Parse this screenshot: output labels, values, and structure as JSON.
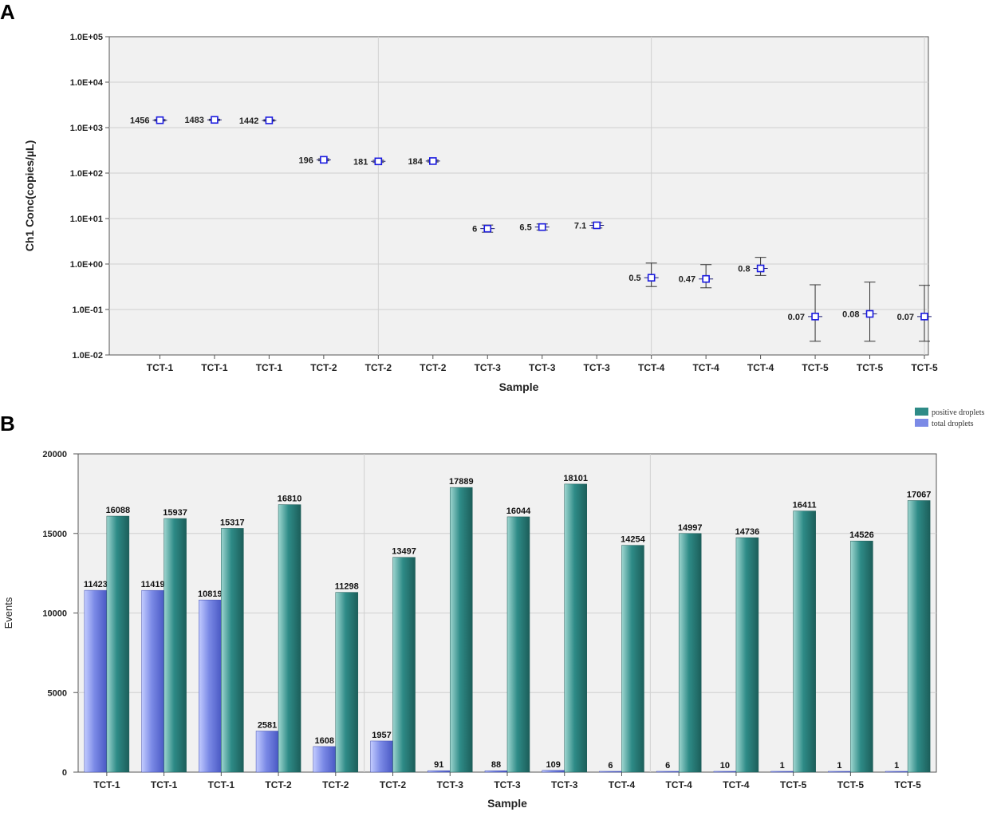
{
  "chart_data": [
    {
      "id": "A",
      "type": "scatter",
      "panel_label": "A",
      "xlabel": "Sample",
      "ylabel": "Ch1 Conc(copies/µL)",
      "yscale": "log",
      "ylim": [
        0.01,
        100000
      ],
      "ytick_labels": [
        "1.0E-02",
        "1.0E-01",
        "1.0E+00",
        "1.0E+01",
        "1.0E+02",
        "1.0E+03",
        "1.0E+04",
        "1.0E+05"
      ],
      "categories": [
        "TCT-1",
        "TCT-1",
        "TCT-1",
        "TCT-2",
        "TCT-2",
        "TCT-2",
        "TCT-3",
        "TCT-3",
        "TCT-3",
        "TCT-4",
        "TCT-4",
        "TCT-4",
        "TCT-5",
        "TCT-5",
        "TCT-5"
      ],
      "values": [
        1456,
        1483,
        1442,
        196,
        181,
        184,
        6,
        6.5,
        7.1,
        0.5,
        0.47,
        0.8,
        0.07,
        0.08,
        0.07
      ],
      "value_labels": [
        "1456",
        "1483",
        "1442",
        "196",
        "181",
        "184",
        "6",
        "6.5",
        "7.1",
        "0.5",
        "0.47",
        "0.8",
        "0.07",
        "0.08",
        "0.07"
      ],
      "error_low": [
        1400,
        1430,
        1390,
        186,
        171,
        175,
        5.0,
        5.6,
        6.2,
        0.32,
        0.3,
        0.56,
        0.02,
        0.02,
        0.02
      ],
      "error_high": [
        1510,
        1535,
        1495,
        207,
        192,
        194,
        7.2,
        7.6,
        8.1,
        1.05,
        0.97,
        1.4,
        0.35,
        0.4,
        0.34
      ],
      "grid": true,
      "marker_color": "#1a1adf"
    },
    {
      "id": "B",
      "type": "bar",
      "panel_label": "B",
      "xlabel": "Sample",
      "ylabel": "Events",
      "ylim": [
        0,
        20000
      ],
      "yticks": [
        0,
        5000,
        10000,
        15000,
        20000
      ],
      "categories": [
        "TCT-1",
        "TCT-1",
        "TCT-1",
        "TCT-2",
        "TCT-2",
        "TCT-2",
        "TCT-3",
        "TCT-3",
        "TCT-3",
        "TCT-4",
        "TCT-4",
        "TCT-4",
        "TCT-5",
        "TCT-5",
        "TCT-5"
      ],
      "legend_position": "top-right",
      "grid": true,
      "series": [
        {
          "name": "total droplets",
          "color": "#7b8ae6",
          "values": [
            11423,
            11419,
            10819,
            2581,
            1608,
            1957,
            91,
            88,
            109,
            6,
            6,
            10,
            1,
            1,
            1
          ]
        },
        {
          "name": "positive droplets",
          "color": "#2e8b87",
          "values": [
            16088,
            15937,
            15317,
            16810,
            11298,
            13497,
            17889,
            16044,
            18101,
            14254,
            14997,
            14736,
            16411,
            14526,
            17067
          ]
        }
      ],
      "legend_order": [
        "positive droplets",
        "total droplets"
      ]
    }
  ]
}
